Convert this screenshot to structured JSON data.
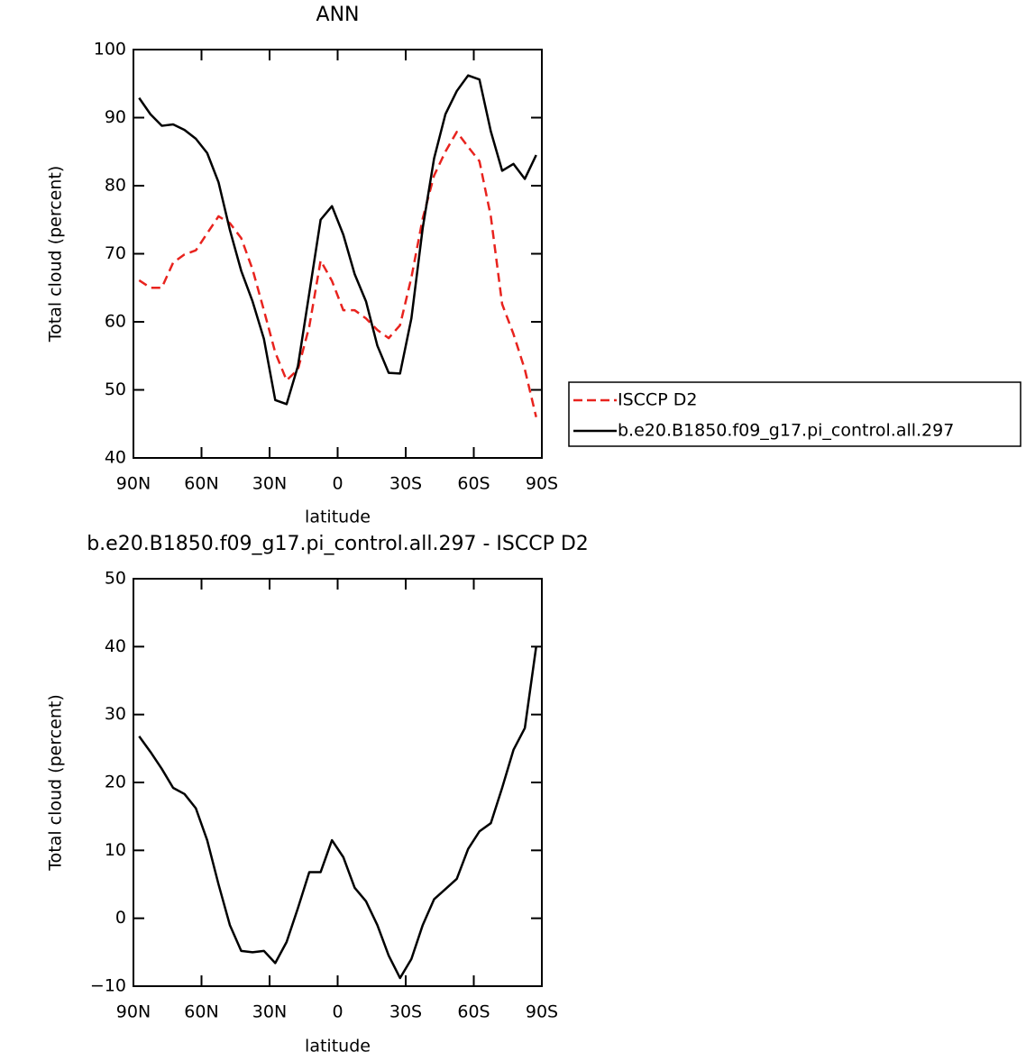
{
  "chart_data": [
    {
      "type": "line",
      "title": "ANN",
      "xlabel": "latitude",
      "ylabel": "Total cloud (percent)",
      "x": [
        87.5,
        82.5,
        77.5,
        72.5,
        67.5,
        62.5,
        57.5,
        52.5,
        47.5,
        42.5,
        37.5,
        32.5,
        27.5,
        22.5,
        17.5,
        12.5,
        7.5,
        2.5,
        -2.5,
        -7.5,
        -12.5,
        -17.5,
        -22.5,
        -27.5,
        -32.5,
        -37.5,
        -42.5,
        -47.5,
        -52.5,
        -57.5,
        -62.5,
        -67.5,
        -72.5,
        -77.5,
        -82.5,
        -87.5
      ],
      "xlim": [
        90,
        -90
      ],
      "xticks": [
        {
          "value": 90,
          "label": "90N"
        },
        {
          "value": 60,
          "label": "60N"
        },
        {
          "value": 30,
          "label": "30N"
        },
        0,
        {
          "value": -30,
          "label": "30S"
        },
        {
          "value": -60,
          "label": "60S"
        },
        {
          "value": -90,
          "label": "90S"
        }
      ],
      "ylim": [
        40,
        100
      ],
      "yticks": [
        40,
        50,
        60,
        70,
        80,
        90,
        100
      ],
      "legend": "right",
      "series": [
        {
          "name": "ISCCP D2",
          "color": "#e8231e",
          "line_style": "dashed",
          "values": [
            66.1,
            65.0,
            65.0,
            68.7,
            69.9,
            70.5,
            73.0,
            75.5,
            74.5,
            72.3,
            67.7,
            61.7,
            55.5,
            51.4,
            53.0,
            59.3,
            69.0,
            66.0,
            61.7,
            61.7,
            60.5,
            58.8,
            57.6,
            59.5,
            66.5,
            75.2,
            81.5,
            85.0,
            87.9,
            85.7,
            83.6,
            75.5,
            62.6,
            58.2,
            53.0,
            46.0
          ]
        },
        {
          "name": "b.e20.B1850.f09_g17.pi_control.all.297",
          "color": "#000000",
          "line_style": "solid",
          "values": [
            92.9,
            90.5,
            88.8,
            89.0,
            88.2,
            86.9,
            84.8,
            80.5,
            73.5,
            67.5,
            63.0,
            57.5,
            48.5,
            47.9,
            53.5,
            64.2,
            75.0,
            77.0,
            72.8,
            67.0,
            63.0,
            56.5,
            52.5,
            52.4,
            60.5,
            73.8,
            84.0,
            90.5,
            93.9,
            96.2,
            95.6,
            88.0,
            82.2,
            83.2,
            81.0,
            84.5
          ]
        }
      ]
    },
    {
      "type": "line",
      "title": "b.e20.B1850.f09_g17.pi_control.all.297 - ISCCP D2",
      "xlabel": "latitude",
      "ylabel": "Total cloud (percent)",
      "x": [
        87.5,
        82.5,
        77.5,
        72.5,
        67.5,
        62.5,
        57.5,
        52.5,
        47.5,
        42.5,
        37.5,
        32.5,
        27.5,
        22.5,
        17.5,
        12.5,
        7.5,
        2.5,
        -2.5,
        -7.5,
        -12.5,
        -17.5,
        -22.5,
        -27.5,
        -32.5,
        -37.5,
        -42.5,
        -47.5,
        -52.5,
        -57.5,
        -62.5,
        -67.5,
        -72.5,
        -77.5,
        -82.5,
        -87.5
      ],
      "xlim": [
        90,
        -90
      ],
      "xticks": [
        {
          "value": 90,
          "label": "90N"
        },
        {
          "value": 60,
          "label": "60N"
        },
        {
          "value": 30,
          "label": "30N"
        },
        0,
        {
          "value": -30,
          "label": "30S"
        },
        {
          "value": -60,
          "label": "60S"
        },
        {
          "value": -90,
          "label": "90S"
        }
      ],
      "ylim": [
        -10,
        50
      ],
      "yticks": [
        {
          "value": -10,
          "label": "−10"
        },
        0,
        10,
        20,
        30,
        40,
        50
      ],
      "series": [
        {
          "color": "#000000",
          "line_style": "solid",
          "values": [
            26.8,
            24.5,
            22.0,
            19.2,
            18.3,
            16.2,
            11.5,
            5.0,
            -1.0,
            -4.8,
            -5.0,
            -4.8,
            -6.6,
            -3.5,
            1.5,
            6.8,
            6.8,
            11.5,
            9.0,
            4.5,
            2.5,
            -1.0,
            -5.5,
            -8.8,
            -6.0,
            -1.0,
            2.8,
            4.3,
            5.8,
            10.2,
            12.8,
            14.0,
            19.2,
            24.8,
            28.0,
            40.0
          ]
        }
      ]
    }
  ]
}
